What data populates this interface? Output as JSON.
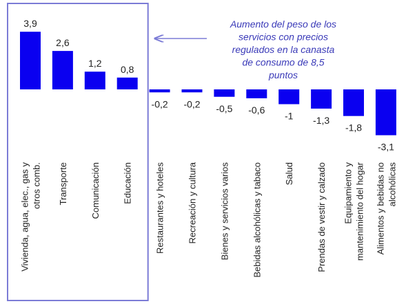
{
  "chart_data": {
    "type": "bar",
    "categories": [
      [
        "Vivienda, agua, elec., gas y",
        "otros comb."
      ],
      [
        "Transporte"
      ],
      [
        "Comunicación"
      ],
      [
        "Educación"
      ],
      [
        "Restaurantes y hoteles"
      ],
      [
        "Recreación y cultura"
      ],
      [
        "Bienes y servicios varios"
      ],
      [
        "Bebidas alcohólicas y tabaco"
      ],
      [
        "Salud"
      ],
      [
        "Prendas de vestir y calzado"
      ],
      [
        "Equipamiento y",
        "mantenimiento del hogar"
      ],
      [
        "Alimentos y bebidas no",
        "alcohólicas"
      ]
    ],
    "values": [
      3.9,
      2.6,
      1.2,
      0.8,
      -0.2,
      -0.2,
      -0.5,
      -0.6,
      -1,
      -1.3,
      -1.8,
      -3.1
    ],
    "value_labels": [
      "3,9",
      "2,6",
      "1,2",
      "0,8",
      "-0,2",
      "-0,2",
      "-0,5",
      "-0,6",
      "-1",
      "-1,3",
      "-1,8",
      "-3,1"
    ],
    "title": "",
    "xlabel": "",
    "ylabel": "",
    "ylim": [
      -3.1,
      3.9
    ],
    "grid": false,
    "bar_color": "#0a00f0",
    "highlight_group": {
      "categories": [
        0,
        1,
        2,
        3
      ],
      "box_color": "#7b7bd6"
    },
    "annotations": [
      {
        "lines": [
          "Aumento del peso de los",
          "servicios con precios",
          "regulados en la canasta",
          "de consumo de 8,5",
          "puntos"
        ],
        "color": "#3a3ab8",
        "arrow_to": "highlight_group"
      }
    ]
  }
}
